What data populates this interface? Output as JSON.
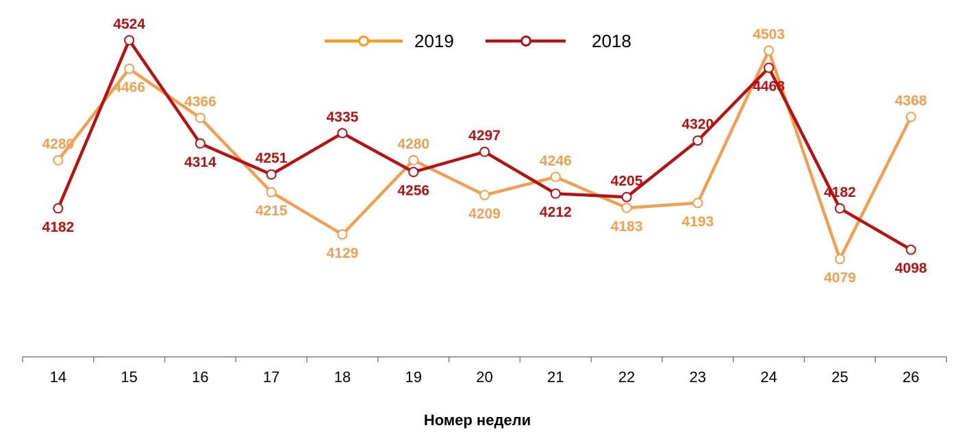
{
  "chart_data": {
    "type": "line",
    "xlabel": "Номер недели",
    "ylabel": "",
    "ylim": [
      3880,
      4553
    ],
    "categories": [
      "14",
      "15",
      "16",
      "17",
      "18",
      "19",
      "20",
      "21",
      "22",
      "23",
      "24",
      "25",
      "26"
    ],
    "series": [
      {
        "name": "2019",
        "color": "#F0A050",
        "legend_color": "#F39C1F",
        "values": [
          4280,
          4466,
          4366,
          4215,
          4129,
          4280,
          4209,
          4246,
          4183,
          4193,
          4503,
          4079,
          4368
        ],
        "labels": [
          "4280",
          "4466",
          "4366",
          "4215",
          "4129",
          "4280",
          "4209",
          "4246",
          "4183",
          "4193",
          "4503",
          "4079",
          "4368"
        ],
        "label_pos": [
          "above",
          "below",
          "above",
          "below",
          "below",
          "above",
          "below",
          "above",
          "below",
          "below",
          "above",
          "below",
          "above"
        ]
      },
      {
        "name": "2018",
        "color": "#B81111",
        "legend_color": "#B81111",
        "values": [
          4182,
          4524,
          4314,
          4251,
          4335,
          4256,
          4297,
          4212,
          4205,
          4320,
          4468,
          4182,
          4098
        ],
        "labels": [
          "4182",
          "4524",
          "4314",
          "4251",
          "4335",
          "4256",
          "4297",
          "4212",
          "4205",
          "4320",
          "4468",
          "4182",
          "4098"
        ],
        "label_pos": [
          "below",
          "above",
          "below",
          "above",
          "above",
          "below",
          "above",
          "below",
          "above",
          "above",
          "below",
          "above",
          "below"
        ]
      }
    ],
    "legend": {
      "position": "top-center",
      "entries": [
        "2019",
        "2018"
      ]
    },
    "grid": false
  }
}
